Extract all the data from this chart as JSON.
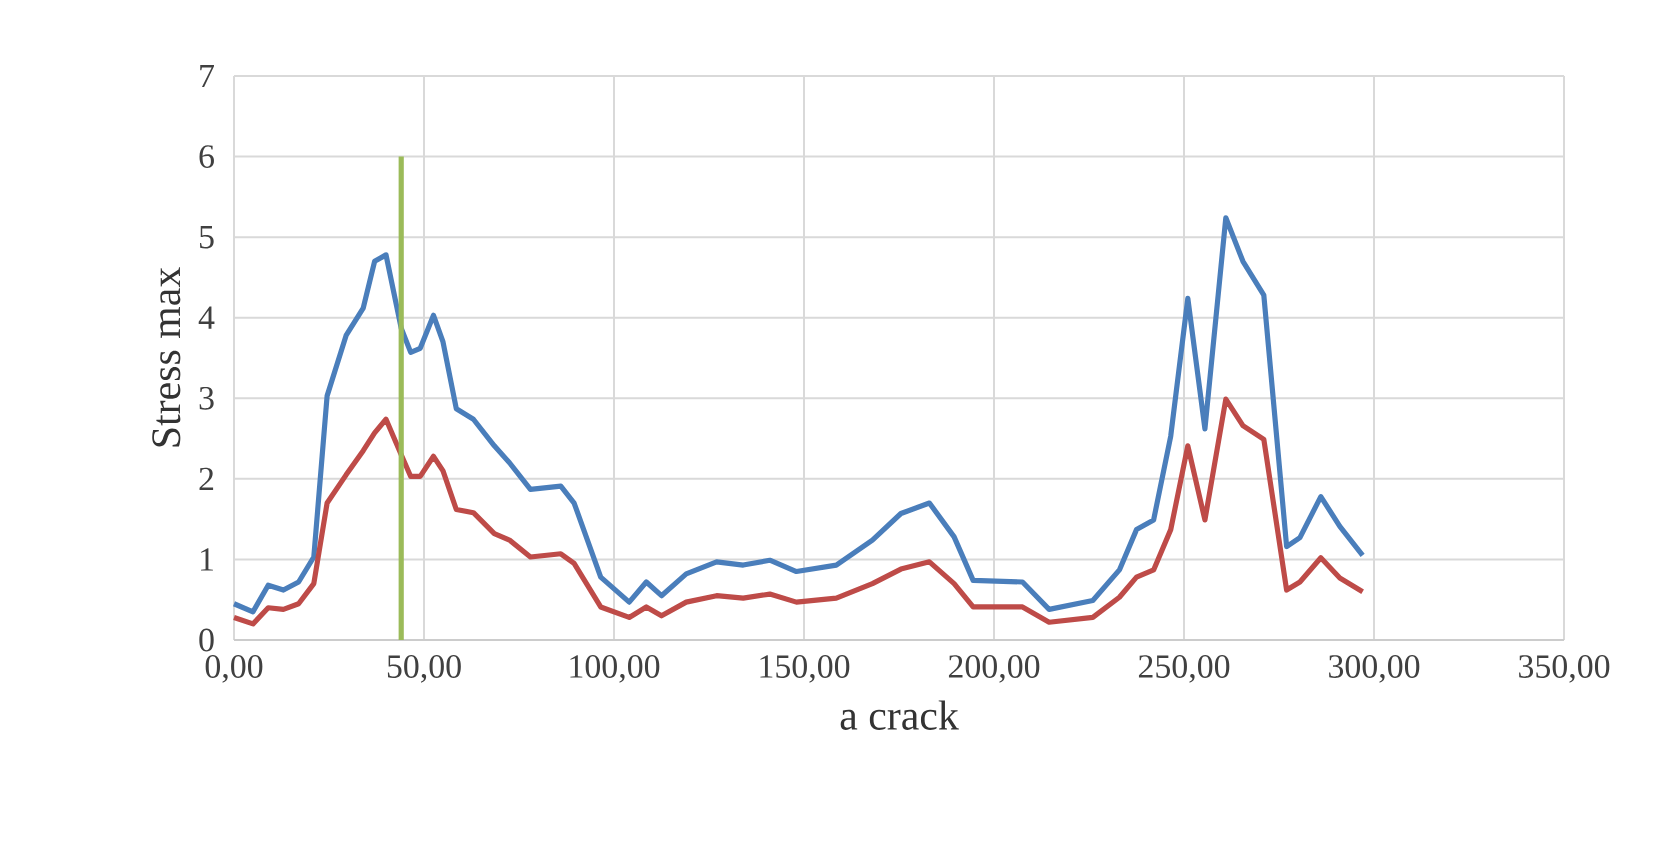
{
  "chart_data": {
    "type": "line",
    "xlabel": "a crack",
    "ylabel": "Stress max",
    "x": [
      0,
      5,
      9,
      13,
      17,
      21,
      24.5,
      29.5,
      34,
      37,
      40,
      44,
      46.5,
      49,
      52.5,
      55,
      58.5,
      63,
      68.5,
      72.5,
      78,
      86,
      89.5,
      96.5,
      104,
      108.5,
      112.5,
      119,
      127,
      134,
      141,
      148,
      158.5,
      168,
      175.5,
      183,
      189.5,
      194.5,
      207.5,
      214.5,
      226,
      233,
      237.5,
      242,
      246.5,
      251,
      255.5,
      261,
      265.5,
      271,
      277,
      280.5,
      286,
      291,
      297
    ],
    "series": [
      {
        "color": "#4a7ebb",
        "values": [
          0.45,
          0.35,
          0.68,
          0.62,
          0.72,
          1.03,
          3.03,
          3.78,
          4.12,
          4.7,
          4.78,
          3.87,
          3.57,
          3.62,
          4.03,
          3.7,
          2.87,
          2.74,
          2.41,
          2.2,
          1.87,
          1.91,
          1.7,
          0.78,
          0.47,
          0.72,
          0.55,
          0.82,
          0.97,
          0.93,
          0.99,
          0.85,
          0.93,
          1.24,
          1.57,
          1.7,
          1.28,
          0.74,
          0.72,
          0.38,
          0.49,
          0.87,
          1.37,
          1.49,
          2.53,
          4.24,
          2.62,
          5.24,
          4.7,
          4.28,
          1.16,
          1.27,
          1.78,
          1.41,
          1.05
        ]
      },
      {
        "color": "#be4b48",
        "values": [
          0.28,
          0.2,
          0.4,
          0.38,
          0.45,
          0.7,
          1.7,
          2.05,
          2.35,
          2.57,
          2.74,
          2.3,
          2.03,
          2.03,
          2.28,
          2.1,
          1.62,
          1.58,
          1.32,
          1.24,
          1.03,
          1.07,
          0.95,
          0.41,
          0.28,
          0.41,
          0.3,
          0.47,
          0.55,
          0.52,
          0.57,
          0.47,
          0.52,
          0.7,
          0.88,
          0.97,
          0.7,
          0.41,
          0.41,
          0.22,
          0.28,
          0.53,
          0.78,
          0.87,
          1.37,
          2.41,
          1.49,
          2.99,
          2.66,
          2.49,
          0.62,
          0.72,
          1.02,
          0.77,
          0.6
        ]
      },
      {
        "color": "#9bbb59",
        "x": [
          44,
          44
        ],
        "values": [
          0,
          6
        ]
      }
    ],
    "xlim": [
      0,
      350
    ],
    "ylim": [
      0,
      7
    ],
    "xticks": [
      {
        "value": 0,
        "label": "0,00"
      },
      {
        "value": 50,
        "label": "50,00"
      },
      {
        "value": 100,
        "label": "100,00"
      },
      {
        "value": 150,
        "label": "150,00"
      },
      {
        "value": 200,
        "label": "200,00"
      },
      {
        "value": 250,
        "label": "250,00"
      },
      {
        "value": 300,
        "label": "300,00"
      },
      {
        "value": 350,
        "label": "350,00"
      }
    ],
    "yticks": [
      0,
      1,
      2,
      3,
      4,
      5,
      6,
      7
    ],
    "grid": true
  }
}
